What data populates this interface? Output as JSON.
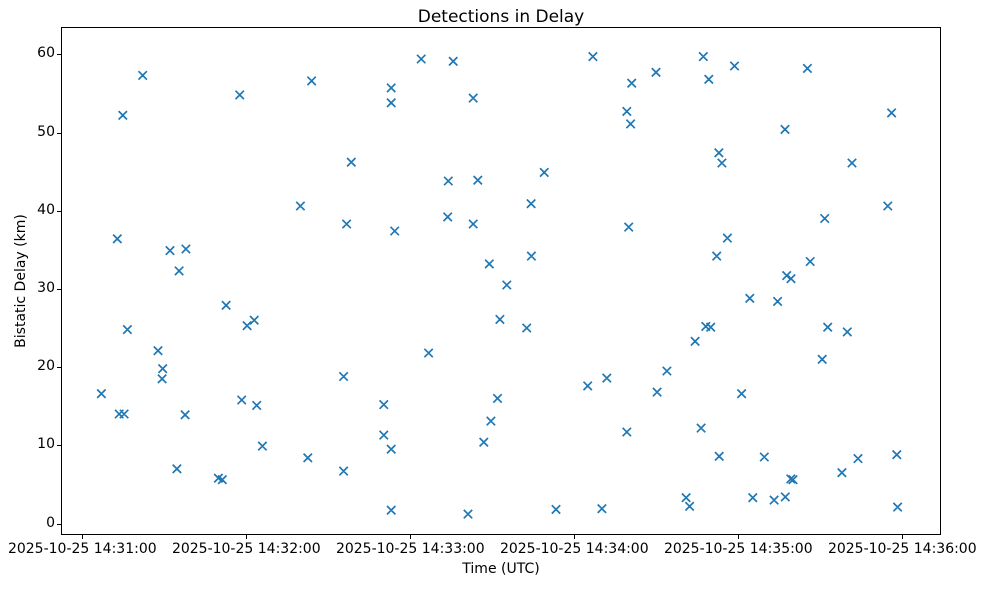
{
  "chart_data": {
    "type": "scatter",
    "title": "Detections in Delay",
    "xlabel": "Time (UTC)",
    "ylabel": "Bistatic Delay (km)",
    "legend": "none",
    "grid": false,
    "marker": "x",
    "colors": {
      "marker": "#1f77b4",
      "spine": "#000000",
      "text": "#000000",
      "background": "#ffffff"
    },
    "x_axis_note": "x values are seconds after 2025-10-25 14:31:00 UTC",
    "xlim_seconds": [
      -7.43,
      313.8
    ],
    "ylim": [
      -1.34,
      63.36
    ],
    "x_ticks": [
      {
        "t": 0,
        "label": "2025-10-25 14:31:00"
      },
      {
        "t": 60,
        "label": "2025-10-25 14:32:00"
      },
      {
        "t": 120,
        "label": "2025-10-25 14:33:00"
      },
      {
        "t": 180,
        "label": "2025-10-25 14:34:00"
      },
      {
        "t": 240,
        "label": "2025-10-25 14:35:00"
      },
      {
        "t": 300,
        "label": "2025-10-25 14:36:00"
      }
    ],
    "y_ticks": [
      0,
      10,
      20,
      30,
      40,
      50,
      60
    ],
    "points": [
      [
        7.0,
        16.6
      ],
      [
        12.8,
        36.4
      ],
      [
        13.5,
        14.0
      ],
      [
        14.8,
        52.2
      ],
      [
        15.3,
        14.0
      ],
      [
        16.5,
        24.8
      ],
      [
        22.1,
        57.3
      ],
      [
        27.7,
        22.1
      ],
      [
        29.2,
        18.5
      ],
      [
        29.4,
        19.8
      ],
      [
        32.1,
        34.9
      ],
      [
        34.6,
        7.0
      ],
      [
        35.4,
        32.3
      ],
      [
        37.6,
        13.9
      ],
      [
        37.9,
        35.1
      ],
      [
        49.8,
        5.8
      ],
      [
        51.2,
        5.6
      ],
      [
        52.6,
        27.9
      ],
      [
        57.6,
        54.8
      ],
      [
        58.3,
        15.8
      ],
      [
        60.3,
        25.3
      ],
      [
        62.9,
        26.0
      ],
      [
        63.8,
        15.1
      ],
      [
        65.9,
        9.9
      ],
      [
        79.8,
        40.6
      ],
      [
        82.5,
        8.4
      ],
      [
        83.9,
        56.6
      ],
      [
        95.6,
        18.8
      ],
      [
        95.6,
        6.7
      ],
      [
        96.7,
        38.3
      ],
      [
        98.4,
        46.2
      ],
      [
        110.3,
        15.2
      ],
      [
        110.3,
        11.3
      ],
      [
        113.0,
        55.7
      ],
      [
        113.0,
        53.8
      ],
      [
        113.0,
        9.5
      ],
      [
        113.0,
        1.7
      ],
      [
        114.3,
        37.4
      ],
      [
        124.0,
        59.4
      ],
      [
        126.7,
        21.8
      ],
      [
        133.7,
        39.2
      ],
      [
        133.9,
        43.8
      ],
      [
        135.7,
        59.1
      ],
      [
        141.1,
        1.2
      ],
      [
        143.0,
        54.4
      ],
      [
        143.0,
        38.3
      ],
      [
        144.7,
        43.9
      ],
      [
        146.9,
        10.4
      ],
      [
        148.9,
        33.2
      ],
      [
        149.5,
        13.1
      ],
      [
        151.9,
        16.0
      ],
      [
        152.8,
        26.1
      ],
      [
        155.3,
        30.5
      ],
      [
        162.6,
        25.0
      ],
      [
        164.2,
        40.9
      ],
      [
        164.3,
        34.2
      ],
      [
        169.0,
        44.9
      ],
      [
        173.3,
        1.8
      ],
      [
        184.9,
        17.6
      ],
      [
        186.8,
        59.7
      ],
      [
        190.1,
        1.9
      ],
      [
        191.9,
        18.6
      ],
      [
        199.2,
        52.7
      ],
      [
        199.2,
        11.7
      ],
      [
        199.9,
        37.9
      ],
      [
        200.6,
        51.1
      ],
      [
        201.0,
        56.3
      ],
      [
        209.9,
        57.7
      ],
      [
        210.3,
        16.8
      ],
      [
        213.9,
        19.5
      ],
      [
        220.9,
        3.3
      ],
      [
        222.2,
        2.2
      ],
      [
        224.2,
        23.3
      ],
      [
        226.4,
        12.2
      ],
      [
        227.2,
        59.7
      ],
      [
        228.1,
        25.2
      ],
      [
        229.2,
        56.8
      ],
      [
        229.9,
        25.1
      ],
      [
        232.1,
        34.2
      ],
      [
        232.9,
        47.4
      ],
      [
        233.0,
        8.6
      ],
      [
        234.0,
        46.1
      ],
      [
        236.0,
        36.5
      ],
      [
        238.6,
        58.5
      ],
      [
        241.2,
        16.6
      ],
      [
        244.2,
        28.8
      ],
      [
        245.3,
        3.3
      ],
      [
        249.5,
        8.5
      ],
      [
        253.1,
        3.0
      ],
      [
        254.4,
        28.4
      ],
      [
        257.1,
        50.4
      ],
      [
        257.2,
        3.4
      ],
      [
        257.7,
        31.7
      ],
      [
        259.2,
        5.7
      ],
      [
        259.3,
        31.3
      ],
      [
        260.0,
        5.6
      ],
      [
        265.3,
        58.2
      ],
      [
        266.3,
        33.5
      ],
      [
        270.7,
        21.0
      ],
      [
        271.6,
        39.0
      ],
      [
        272.7,
        25.1
      ],
      [
        277.9,
        6.5
      ],
      [
        279.9,
        24.5
      ],
      [
        281.6,
        46.1
      ],
      [
        283.8,
        8.3
      ],
      [
        294.7,
        40.6
      ],
      [
        296.1,
        52.5
      ],
      [
        298.0,
        8.8
      ],
      [
        298.3,
        2.1
      ]
    ]
  }
}
